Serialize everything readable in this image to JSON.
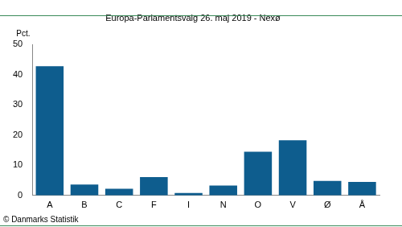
{
  "chart_data": {
    "type": "bar",
    "title": "Europa-Parlamentsvalg 26. maj 2019 - Nexø",
    "ylabel": "Pct.",
    "source": "© Danmarks Statistik",
    "categories": [
      "A",
      "B",
      "C",
      "F",
      "I",
      "N",
      "O",
      "V",
      "Ø",
      "Å"
    ],
    "values": [
      42.8,
      3.6,
      2.2,
      6.1,
      0.8,
      3.3,
      14.5,
      18.3,
      4.8,
      4.5
    ],
    "color": "#0e5d8e",
    "ylim": [
      0,
      50
    ],
    "yticks": [
      0,
      10,
      20,
      30,
      40,
      50
    ],
    "grid": false
  }
}
